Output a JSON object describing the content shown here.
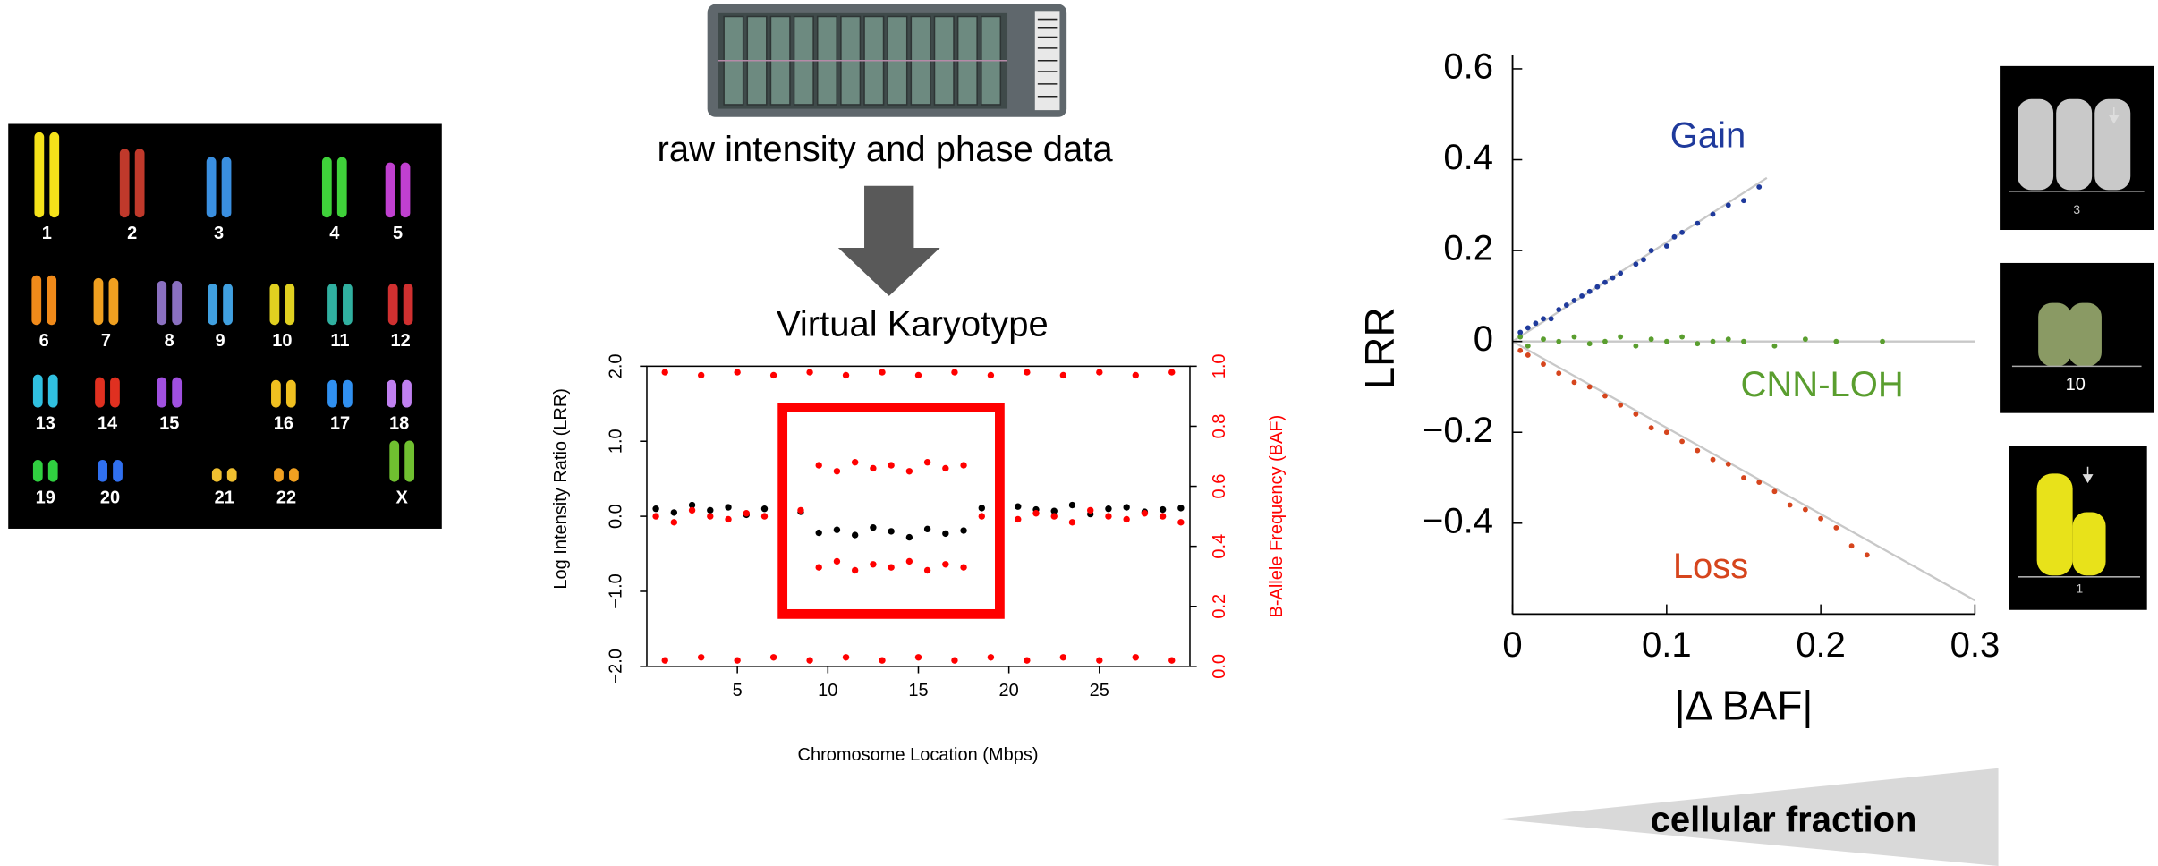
{
  "karyotype": {
    "labels": [
      "1",
      "2",
      "3",
      "4",
      "5",
      "6",
      "7",
      "8",
      "9",
      "10",
      "11",
      "12",
      "13",
      "14",
      "15",
      "16",
      "17",
      "18",
      "19",
      "20",
      "21",
      "22",
      "X"
    ]
  },
  "array_caption": "raw intensity and phase data",
  "virtual_karyotype_title": "Virtual Karyotype",
  "thumbnails": {
    "labels": [
      "3",
      "10",
      "1"
    ]
  },
  "cellular_fraction": "cellular fraction",
  "chart_data": [
    {
      "type": "scatter",
      "xlabel": "Chromosome Location (Mbps)",
      "ylabel": "Log Intensity Ratio (LRR)",
      "y2label": "B-Allele Frequency (BAF)",
      "xlim": [
        0,
        30
      ],
      "xticks": [
        5,
        10,
        15,
        20,
        25
      ],
      "ylim": [
        -2,
        2
      ],
      "yticks": [
        {
          "value": -2,
          "label": "−2.0"
        },
        {
          "value": -1,
          "label": "−1.0"
        },
        {
          "value": 0,
          "label": "0.0"
        },
        {
          "value": 1,
          "label": "1.0"
        },
        {
          "value": 2,
          "label": "2.0"
        }
      ],
      "y2lim": [
        0,
        1
      ],
      "y2ticks": [
        {
          "value": 0,
          "label": "0.0"
        },
        0.2,
        0.4,
        0.6,
        0.8,
        {
          "value": 1,
          "label": "1.0"
        }
      ],
      "series": [
        {
          "color": "#000000",
          "x": [
            0.5,
            1.5,
            2.5,
            3.5,
            4.5,
            5.5,
            6.5,
            7.5,
            8.5,
            9.5,
            10.5,
            11.5,
            12.5,
            13.5,
            14.5,
            15.5,
            16.5,
            17.5,
            18.5,
            19.5,
            20.5,
            21.5,
            22.5,
            23.5,
            24.5,
            25.5,
            26.5,
            27.5,
            28.5,
            29.5
          ],
          "values": [
            0.1,
            0.05,
            0.15,
            0.08,
            0.12,
            0.02,
            0.1,
            0.14,
            0.06,
            -0.22,
            -0.18,
            -0.25,
            -0.15,
            -0.2,
            -0.28,
            -0.17,
            -0.23,
            -0.19,
            0.11,
            0.04,
            0.13,
            0.09,
            0.07,
            0.15,
            0.03,
            0.1,
            0.12,
            0.06,
            0.09,
            0.11
          ]
        },
        {
          "color": "#ff0000",
          "axis": "y2",
          "x": [
            0.5,
            1.5,
            2.5,
            3.5,
            4.5,
            5.5,
            6.5,
            7.5,
            8.5,
            9.5,
            9.5,
            10.5,
            10.5,
            11.5,
            11.5,
            12.5,
            12.5,
            13.5,
            13.5,
            14.5,
            14.5,
            15.5,
            15.5,
            16.5,
            16.5,
            17.5,
            17.5,
            18.5,
            19.5,
            20.5,
            21.5,
            22.5,
            23.5,
            24.5,
            25.5,
            26.5,
            27.5,
            28.5,
            29.5
          ],
          "values": [
            0.5,
            0.48,
            0.52,
            0.5,
            0.49,
            0.51,
            0.5,
            0.47,
            0.52,
            0.67,
            0.33,
            0.65,
            0.35,
            0.68,
            0.32,
            0.66,
            0.34,
            0.67,
            0.33,
            0.65,
            0.35,
            0.68,
            0.32,
            0.66,
            0.34,
            0.67,
            0.33,
            0.5,
            0.52,
            0.49,
            0.51,
            0.5,
            0.48,
            0.52,
            0.5,
            0.49,
            0.51,
            0.5,
            0.48
          ]
        },
        {
          "color": "#ff0000",
          "axis": "y2",
          "x": [
            1,
            1,
            3,
            3,
            5,
            5,
            7,
            7,
            9,
            9,
            11,
            11,
            13,
            13,
            15,
            15,
            17,
            17,
            19,
            19,
            21,
            21,
            23,
            23,
            25,
            25,
            27,
            27,
            29,
            29
          ],
          "values": [
            0.98,
            0.02,
            0.97,
            0.03,
            0.98,
            0.02,
            0.97,
            0.03,
            0.98,
            0.02,
            0.97,
            0.03,
            0.98,
            0.02,
            0.97,
            0.03,
            0.98,
            0.02,
            0.97,
            0.03,
            0.98,
            0.02,
            0.97,
            0.03,
            0.98,
            0.02,
            0.97,
            0.03,
            0.98,
            0.02
          ]
        }
      ]
    },
    {
      "type": "scatter",
      "xlabel": "|Δ BAF|",
      "ylabel": "LRR",
      "xlim": [
        0,
        0.3
      ],
      "xticks": [
        0,
        0.1,
        0.2,
        0.3
      ],
      "ylim": [
        -0.6,
        0.6
      ],
      "yticks": [
        {
          "value": -0.4,
          "label": "−0.4"
        },
        {
          "value": -0.2,
          "label": "−0.2"
        },
        0,
        0.2,
        0.4,
        0.6
      ],
      "series": [
        {
          "name": "Gain",
          "color": "#1f3a9c",
          "x": [
            0.005,
            0.01,
            0.015,
            0.02,
            0.025,
            0.03,
            0.035,
            0.04,
            0.045,
            0.05,
            0.055,
            0.06,
            0.065,
            0.07,
            0.08,
            0.085,
            0.09,
            0.1,
            0.105,
            0.11,
            0.12,
            0.13,
            0.14,
            0.15,
            0.16
          ],
          "values": [
            0.02,
            0.03,
            0.04,
            0.05,
            0.05,
            0.07,
            0.08,
            0.09,
            0.1,
            0.11,
            0.12,
            0.13,
            0.14,
            0.15,
            0.17,
            0.18,
            0.2,
            0.21,
            0.23,
            0.24,
            0.26,
            0.28,
            0.3,
            0.31,
            0.34
          ]
        },
        {
          "name": "CNN-LOH",
          "color": "#5a9e2f",
          "x": [
            0.005,
            0.01,
            0.02,
            0.03,
            0.04,
            0.05,
            0.06,
            0.07,
            0.08,
            0.09,
            0.1,
            0.11,
            0.12,
            0.13,
            0.14,
            0.15,
            0.17,
            0.19,
            0.21,
            0.24
          ],
          "values": [
            0.01,
            -0.01,
            0.005,
            0,
            0.01,
            -0.005,
            0,
            0.01,
            -0.01,
            0.005,
            0,
            0.01,
            -0.005,
            0,
            0.005,
            0,
            -0.01,
            0.005,
            0,
            0
          ]
        },
        {
          "name": "Loss",
          "color": "#d6451d",
          "x": [
            0.005,
            0.01,
            0.02,
            0.03,
            0.04,
            0.05,
            0.06,
            0.07,
            0.08,
            0.09,
            0.1,
            0.11,
            0.12,
            0.13,
            0.14,
            0.15,
            0.16,
            0.17,
            0.18,
            0.19,
            0.2,
            0.21,
            0.22,
            0.23
          ],
          "values": [
            -0.02,
            -0.03,
            -0.05,
            -0.07,
            -0.09,
            -0.1,
            -0.12,
            -0.14,
            -0.16,
            -0.19,
            -0.2,
            -0.22,
            -0.24,
            -0.26,
            -0.27,
            -0.3,
            -0.31,
            -0.33,
            -0.36,
            -0.37,
            -0.39,
            -0.41,
            -0.45,
            -0.47
          ]
        }
      ]
    }
  ]
}
